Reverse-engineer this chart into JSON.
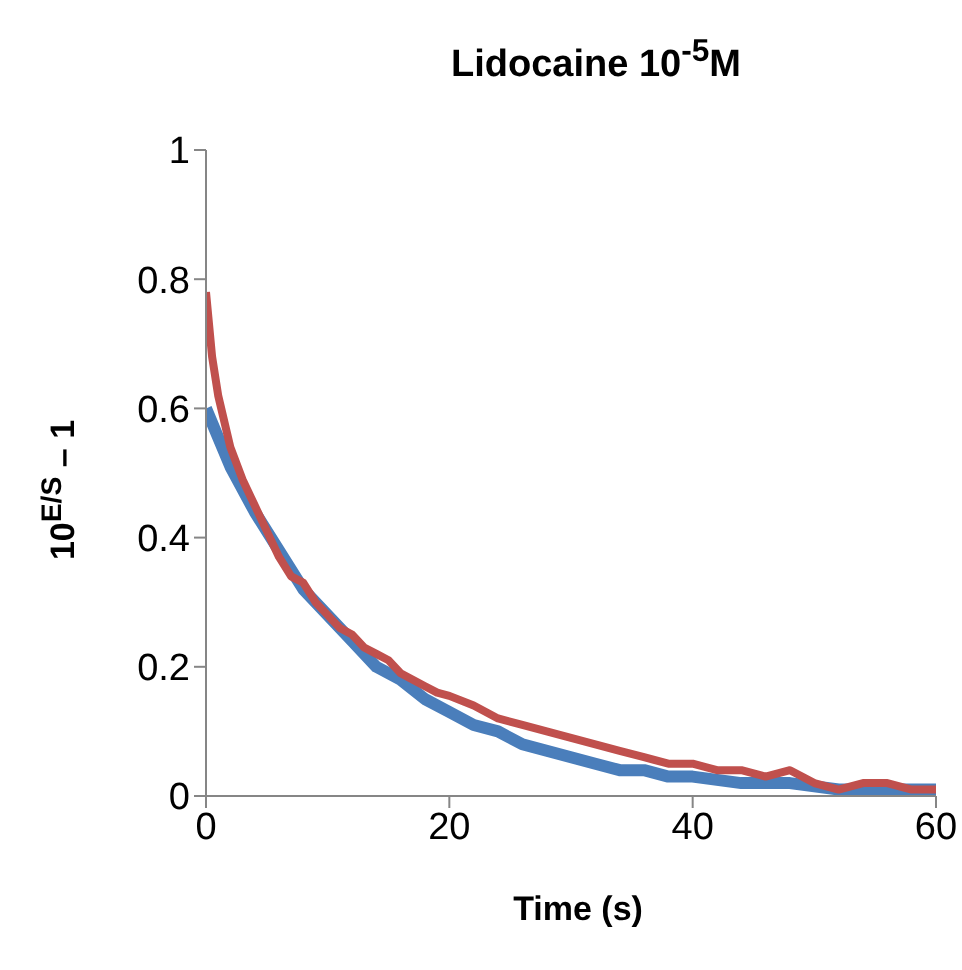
{
  "chart_data": {
    "type": "line",
    "title": "Lidocaine 10$^{-5}$M",
    "xlabel": "Time (s)",
    "ylabel": "10$^{E/S}$ – 1",
    "xlim": [
      0,
      60
    ],
    "xticks": [
      0,
      20,
      40,
      60
    ],
    "ylim": [
      0,
      1
    ],
    "yticks": [
      0,
      0.2,
      0.4,
      0.6,
      0.8,
      1
    ],
    "grid": false,
    "marker": "none",
    "line_style": "solid",
    "series": [
      {
        "color": "#c0504d",
        "x": [
          0,
          0.5,
          1,
          2,
          3,
          4,
          5,
          6,
          7,
          8,
          9,
          10,
          11,
          12,
          13,
          14,
          15,
          16,
          17,
          18,
          19,
          20,
          22,
          24,
          26,
          28,
          30,
          32,
          34,
          36,
          38,
          40,
          42,
          44,
          46,
          48,
          50,
          52,
          54,
          56,
          58,
          60
        ],
        "values": [
          0.78,
          0.68,
          0.62,
          0.54,
          0.49,
          0.45,
          0.41,
          0.37,
          0.34,
          0.33,
          0.3,
          0.28,
          0.26,
          0.25,
          0.23,
          0.22,
          0.21,
          0.19,
          0.18,
          0.17,
          0.16,
          0.155,
          0.14,
          0.12,
          0.11,
          0.1,
          0.09,
          0.08,
          0.07,
          0.06,
          0.05,
          0.05,
          0.04,
          0.04,
          0.03,
          0.04,
          0.02,
          0.01,
          0.02,
          0.02,
          0.01,
          0.01
        ]
      },
      {
        "color": "#4a7ebb",
        "x": [
          0,
          2,
          4,
          6,
          8,
          10,
          12,
          14,
          16,
          18,
          20,
          22,
          24,
          26,
          28,
          30,
          32,
          34,
          36,
          38,
          40,
          44,
          48,
          52,
          56,
          60
        ],
        "values": [
          0.6,
          0.51,
          0.44,
          0.38,
          0.32,
          0.28,
          0.24,
          0.2,
          0.18,
          0.15,
          0.13,
          0.11,
          0.1,
          0.08,
          0.07,
          0.06,
          0.05,
          0.04,
          0.04,
          0.03,
          0.03,
          0.02,
          0.02,
          0.01,
          0.01,
          0.01
        ]
      }
    ]
  }
}
